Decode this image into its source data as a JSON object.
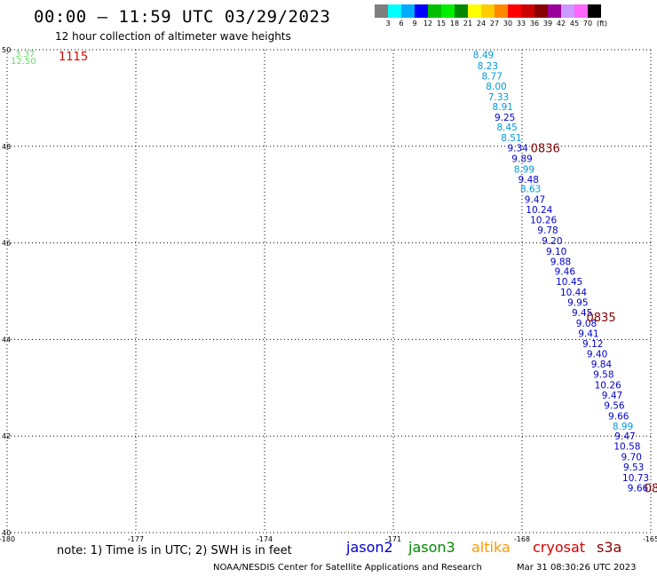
{
  "title": "00:00 – 11:59 UTC 03/29/2023",
  "subtitle": "12 hour collection of altimeter wave heights",
  "colorbar": {
    "unit": "(ft)",
    "colors": [
      "#7f7f7f",
      "#00ffff",
      "#00aaff",
      "#0000ff",
      "#00c000",
      "#00ee00",
      "#008800",
      "#ffff00",
      "#ffcc00",
      "#ff8800",
      "#ff0000",
      "#cc0000",
      "#880000",
      "#990099",
      "#cc99ff",
      "#ff66ff",
      "#000000"
    ],
    "labels": [
      "3",
      "6",
      "9",
      "12",
      "15",
      "18",
      "21",
      "24",
      "27",
      "30",
      "33",
      "36",
      "39",
      "42",
      "45",
      "70"
    ]
  },
  "chart_data": {
    "type": "map",
    "x_ticks": [
      "-180",
      "-177",
      "-174",
      "-171",
      "-168",
      "-165"
    ],
    "y_ticks": [
      "50",
      "48",
      "46",
      "44",
      "42",
      "40"
    ],
    "xlim": [
      -180,
      -165
    ],
    "ylim": [
      40,
      50
    ],
    "grid": "dotted",
    "track_times": [
      {
        "label": "1115",
        "lon": -178.8,
        "lat": 49.87,
        "color": "#e00000"
      },
      {
        "label": "0836",
        "lon": -167.8,
        "lat": 47.97,
        "color": "#800000"
      },
      {
        "label": "0835",
        "lon": -166.5,
        "lat": 44.47,
        "color": "#800000"
      },
      {
        "label": "08",
        "lon": -165.15,
        "lat": 40.93,
        "color": "#800000"
      }
    ],
    "corner_values": [
      {
        "value": "3.37",
        "color": "#66dd66"
      },
      {
        "value": "12.50",
        "color": "#66dd66"
      }
    ],
    "track": [
      {
        "value": "8.49",
        "lon": -168.9,
        "lat": 49.9,
        "color": "#0099dd"
      },
      {
        "value": "8.23",
        "lon": -168.8,
        "lat": 49.67,
        "color": "#0099dd"
      },
      {
        "value": "8.77",
        "lon": -168.7,
        "lat": 49.46,
        "color": "#0099dd"
      },
      {
        "value": "8.00",
        "lon": -168.6,
        "lat": 49.25,
        "color": "#0099dd"
      },
      {
        "value": "7.33",
        "lon": -168.55,
        "lat": 49.03,
        "color": "#0099dd"
      },
      {
        "value": "8.91",
        "lon": -168.45,
        "lat": 48.82,
        "color": "#0099dd"
      },
      {
        "value": "9.25",
        "lon": -168.4,
        "lat": 48.6,
        "color": "#0000cc"
      },
      {
        "value": "8.45",
        "lon": -168.35,
        "lat": 48.4,
        "color": "#0099dd"
      },
      {
        "value": "8.51",
        "lon": -168.25,
        "lat": 48.18,
        "color": "#0099dd"
      },
      {
        "value": "9.34",
        "lon": -168.1,
        "lat": 47.97,
        "color": "#0000cc"
      },
      {
        "value": "9.89",
        "lon": -168.0,
        "lat": 47.75,
        "color": "#0000cc"
      },
      {
        "value": "8.99",
        "lon": -167.95,
        "lat": 47.53,
        "color": "#0099dd"
      },
      {
        "value": "9.48",
        "lon": -167.85,
        "lat": 47.32,
        "color": "#0000cc"
      },
      {
        "value": "8.63",
        "lon": -167.8,
        "lat": 47.12,
        "color": "#0099dd"
      },
      {
        "value": "9.47",
        "lon": -167.7,
        "lat": 46.9,
        "color": "#0000cc"
      },
      {
        "value": "10.24",
        "lon": -167.6,
        "lat": 46.69,
        "color": "#0000cc"
      },
      {
        "value": "10.26",
        "lon": -167.5,
        "lat": 46.48,
        "color": "#0000cc"
      },
      {
        "value": "9.78",
        "lon": -167.4,
        "lat": 46.27,
        "color": "#0000cc"
      },
      {
        "value": "9.20",
        "lon": -167.3,
        "lat": 46.05,
        "color": "#0000cc"
      },
      {
        "value": "9.10",
        "lon": -167.2,
        "lat": 45.83,
        "color": "#0000cc"
      },
      {
        "value": "9.88",
        "lon": -167.1,
        "lat": 45.62,
        "color": "#0000cc"
      },
      {
        "value": "9.46",
        "lon": -167.0,
        "lat": 45.41,
        "color": "#0000cc"
      },
      {
        "value": "10.45",
        "lon": -166.9,
        "lat": 45.2,
        "color": "#0000cc"
      },
      {
        "value": "10.44",
        "lon": -166.8,
        "lat": 44.98,
        "color": "#0000cc"
      },
      {
        "value": "9.95",
        "lon": -166.7,
        "lat": 44.77,
        "color": "#0000cc"
      },
      {
        "value": "9.45",
        "lon": -166.6,
        "lat": 44.56,
        "color": "#0000cc"
      },
      {
        "value": "9.08",
        "lon": -166.5,
        "lat": 44.34,
        "color": "#0000cc"
      },
      {
        "value": "9.41",
        "lon": -166.45,
        "lat": 44.13,
        "color": "#0000cc"
      },
      {
        "value": "9.12",
        "lon": -166.35,
        "lat": 43.92,
        "color": "#0000cc"
      },
      {
        "value": "9.40",
        "lon": -166.25,
        "lat": 43.7,
        "color": "#0000cc"
      },
      {
        "value": "9.84",
        "lon": -166.15,
        "lat": 43.49,
        "color": "#0000cc"
      },
      {
        "value": "9.58",
        "lon": -166.1,
        "lat": 43.28,
        "color": "#0000cc"
      },
      {
        "value": "10.26",
        "lon": -166.0,
        "lat": 43.06,
        "color": "#0000cc"
      },
      {
        "value": "9.47",
        "lon": -165.9,
        "lat": 42.85,
        "color": "#0000cc"
      },
      {
        "value": "9.56",
        "lon": -165.85,
        "lat": 42.64,
        "color": "#0000cc"
      },
      {
        "value": "9.66",
        "lon": -165.75,
        "lat": 42.42,
        "color": "#0000cc"
      },
      {
        "value": "8.99",
        "lon": -165.65,
        "lat": 42.21,
        "color": "#0099dd"
      },
      {
        "value": "9.47",
        "lon": -165.6,
        "lat": 42.0,
        "color": "#0000cc"
      },
      {
        "value": "10.58",
        "lon": -165.55,
        "lat": 41.79,
        "color": "#0000cc"
      },
      {
        "value": "9.70",
        "lon": -165.45,
        "lat": 41.57,
        "color": "#0000cc"
      },
      {
        "value": "9.53",
        "lon": -165.4,
        "lat": 41.36,
        "color": "#0000cc"
      },
      {
        "value": "10.73",
        "lon": -165.35,
        "lat": 41.14,
        "color": "#0000cc"
      },
      {
        "value": "9.66",
        "lon": -165.3,
        "lat": 40.93,
        "color": "#0000cc"
      }
    ]
  },
  "footer": {
    "note": "note: 1) Time is in UTC; 2) SWH is in feet",
    "legend": [
      {
        "label": "jason2",
        "color": "#0000cc"
      },
      {
        "label": "jason3",
        "color": "#008800"
      },
      {
        "label": "altika",
        "color": "#ff9900"
      },
      {
        "label": "cryosat",
        "color": "#dd0000"
      },
      {
        "label": "s3a",
        "color": "#880000"
      }
    ],
    "credit": "NOAA/NESDIS Center for Satellite Applications and Research",
    "timestamp": "Mar 31 08:30:26 UTC 2023"
  }
}
